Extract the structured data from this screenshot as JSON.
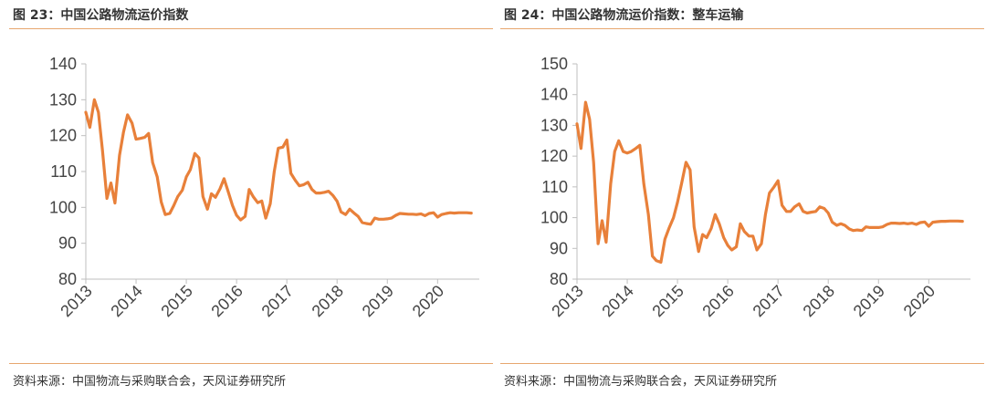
{
  "charts": [
    {
      "title": "图 23：中国公路物流运价指数",
      "source": "资料来源：中国物流与采购联合会，天风证券研究所",
      "chart_data": {
        "type": "line",
        "title": "图 23：中国公路物流运价指数",
        "xlabel": "",
        "ylabel": "",
        "ylim": [
          80,
          140
        ],
        "yticks": [
          80,
          90,
          100,
          110,
          120,
          130,
          140
        ],
        "xlim": [
          2013,
          2020.83
        ],
        "xticks": [
          "2013",
          "2014",
          "2015",
          "2016",
          "2017",
          "2018",
          "2019",
          "2020"
        ],
        "grid": false,
        "legend": "none",
        "color": "#E8803A",
        "series": [
          {
            "x": [
              2013.0,
              2013.08,
              2013.17,
              2013.25,
              2013.33,
              2013.42,
              2013.5,
              2013.58,
              2013.67,
              2013.75,
              2013.83,
              2013.92,
              2014.0,
              2014.08,
              2014.17,
              2014.25,
              2014.33,
              2014.42,
              2014.5,
              2014.58,
              2014.67,
              2014.75,
              2014.83,
              2014.92,
              2015.0,
              2015.08,
              2015.17,
              2015.25,
              2015.33,
              2015.42,
              2015.5,
              2015.58,
              2015.67,
              2015.75,
              2015.83,
              2015.92,
              2016.0,
              2016.08,
              2016.17,
              2016.25,
              2016.33,
              2016.42,
              2016.5,
              2016.58,
              2016.67,
              2016.75,
              2016.83,
              2016.92,
              2017.0,
              2017.08,
              2017.17,
              2017.25,
              2017.33,
              2017.42,
              2017.5,
              2017.58,
              2017.67,
              2017.75,
              2017.83,
              2017.92,
              2018.0,
              2018.08,
              2018.17,
              2018.25,
              2018.33,
              2018.42,
              2018.5,
              2018.58,
              2018.67,
              2018.75,
              2018.83,
              2018.92,
              2019.0,
              2019.08,
              2019.17,
              2019.25,
              2019.33,
              2019.42,
              2019.5,
              2019.58,
              2019.67,
              2019.75,
              2019.83,
              2019.92,
              2020.0,
              2020.08,
              2020.17,
              2020.25,
              2020.33,
              2020.42,
              2020.5,
              2020.58,
              2020.67
            ],
            "values": [
              126.5,
              122.3,
              130.0,
              126.5,
              116.0,
              102.5,
              106.8,
              101.2,
              114.5,
              121.0,
              125.8,
              123.5,
              119.0,
              119.2,
              119.5,
              120.6,
              112.5,
              108.5,
              101.5,
              98.0,
              98.3,
              100.5,
              103.0,
              104.8,
              108.5,
              110.5,
              115.0,
              113.8,
              103.0,
              99.5,
              103.8,
              102.8,
              105.2,
              108.0,
              104.5,
              100.5,
              97.8,
              96.5,
              97.5,
              105.0,
              103.0,
              101.3,
              101.8,
              97.0,
              101.0,
              110.0,
              116.5,
              116.8,
              118.8,
              109.5,
              107.5,
              106.0,
              106.3,
              107.0,
              105.0,
              104.0,
              104.0,
              104.2,
              104.5,
              103.3,
              101.7,
              98.7,
              98.0,
              99.5,
              98.5,
              97.5,
              95.8,
              95.5,
              95.3,
              97.0,
              96.7,
              96.7,
              96.8,
              97.0,
              97.8,
              98.3,
              98.2,
              98.1,
              98.1,
              98.0,
              98.2,
              97.7,
              98.3,
              98.5,
              97.3,
              98.0,
              98.3,
              98.5,
              98.4,
              98.5,
              98.5,
              98.5,
              98.4
            ]
          }
        ]
      }
    },
    {
      "title": "图 24：中国公路物流运价指数：整车运输",
      "source": "资料来源：中国物流与采购联合会，天风证券研究所",
      "chart_data": {
        "type": "line",
        "title": "图 24：中国公路物流运价指数：整车运输",
        "xlabel": "",
        "ylabel": "",
        "ylim": [
          80,
          150
        ],
        "yticks": [
          80,
          90,
          100,
          110,
          120,
          130,
          140,
          150
        ],
        "xlim": [
          2013,
          2020.83
        ],
        "xticks": [
          "2013",
          "2014",
          "2015",
          "2016",
          "2017",
          "2018",
          "2019",
          "2020"
        ],
        "grid": false,
        "legend": "none",
        "color": "#E8803A",
        "series": [
          {
            "x": [
              2013.0,
              2013.08,
              2013.17,
              2013.25,
              2013.33,
              2013.42,
              2013.5,
              2013.58,
              2013.67,
              2013.75,
              2013.83,
              2013.92,
              2014.0,
              2014.08,
              2014.17,
              2014.25,
              2014.33,
              2014.42,
              2014.5,
              2014.58,
              2014.67,
              2014.75,
              2014.83,
              2014.92,
              2015.0,
              2015.08,
              2015.17,
              2015.25,
              2015.33,
              2015.42,
              2015.5,
              2015.58,
              2015.67,
              2015.75,
              2015.83,
              2015.92,
              2016.0,
              2016.08,
              2016.17,
              2016.25,
              2016.33,
              2016.42,
              2016.5,
              2016.58,
              2016.67,
              2016.75,
              2016.83,
              2016.92,
              2017.0,
              2017.08,
              2017.17,
              2017.25,
              2017.33,
              2017.42,
              2017.5,
              2017.58,
              2017.67,
              2017.75,
              2017.83,
              2017.92,
              2018.0,
              2018.08,
              2018.17,
              2018.25,
              2018.33,
              2018.42,
              2018.5,
              2018.58,
              2018.67,
              2018.75,
              2018.83,
              2018.92,
              2019.0,
              2019.08,
              2019.17,
              2019.25,
              2019.33,
              2019.42,
              2019.5,
              2019.58,
              2019.67,
              2019.75,
              2019.83,
              2019.92,
              2020.0,
              2020.08,
              2020.17,
              2020.25,
              2020.33,
              2020.42,
              2020.5,
              2020.58,
              2020.67
            ],
            "values": [
              130.5,
              122.5,
              137.5,
              132.0,
              118.0,
              91.5,
              99.0,
              92.0,
              111.0,
              121.5,
              125.0,
              121.5,
              121.0,
              121.5,
              122.5,
              123.5,
              111.0,
              101.0,
              87.5,
              86.0,
              85.5,
              93.0,
              96.5,
              100.0,
              105.0,
              111.0,
              118.0,
              115.5,
              97.0,
              89.0,
              94.5,
              93.5,
              96.5,
              101.0,
              98.0,
              93.5,
              91.0,
              89.5,
              90.5,
              98.0,
              95.5,
              94.0,
              94.0,
              89.5,
              91.5,
              101.0,
              108.0,
              110.0,
              112.0,
              104.0,
              102.0,
              102.0,
              103.5,
              104.5,
              102.0,
              101.5,
              101.8,
              102.0,
              103.5,
              103.0,
              101.5,
              98.5,
              97.5,
              98.0,
              97.5,
              96.3,
              95.8,
              96.0,
              95.8,
              97.0,
              96.8,
              96.8,
              96.8,
              97.0,
              97.8,
              98.2,
              98.2,
              98.1,
              98.2,
              98.0,
              98.2,
              97.8,
              98.4,
              98.6,
              97.2,
              98.5,
              98.7,
              98.8,
              98.8,
              98.9,
              98.9,
              98.9,
              98.8
            ]
          }
        ]
      }
    }
  ]
}
